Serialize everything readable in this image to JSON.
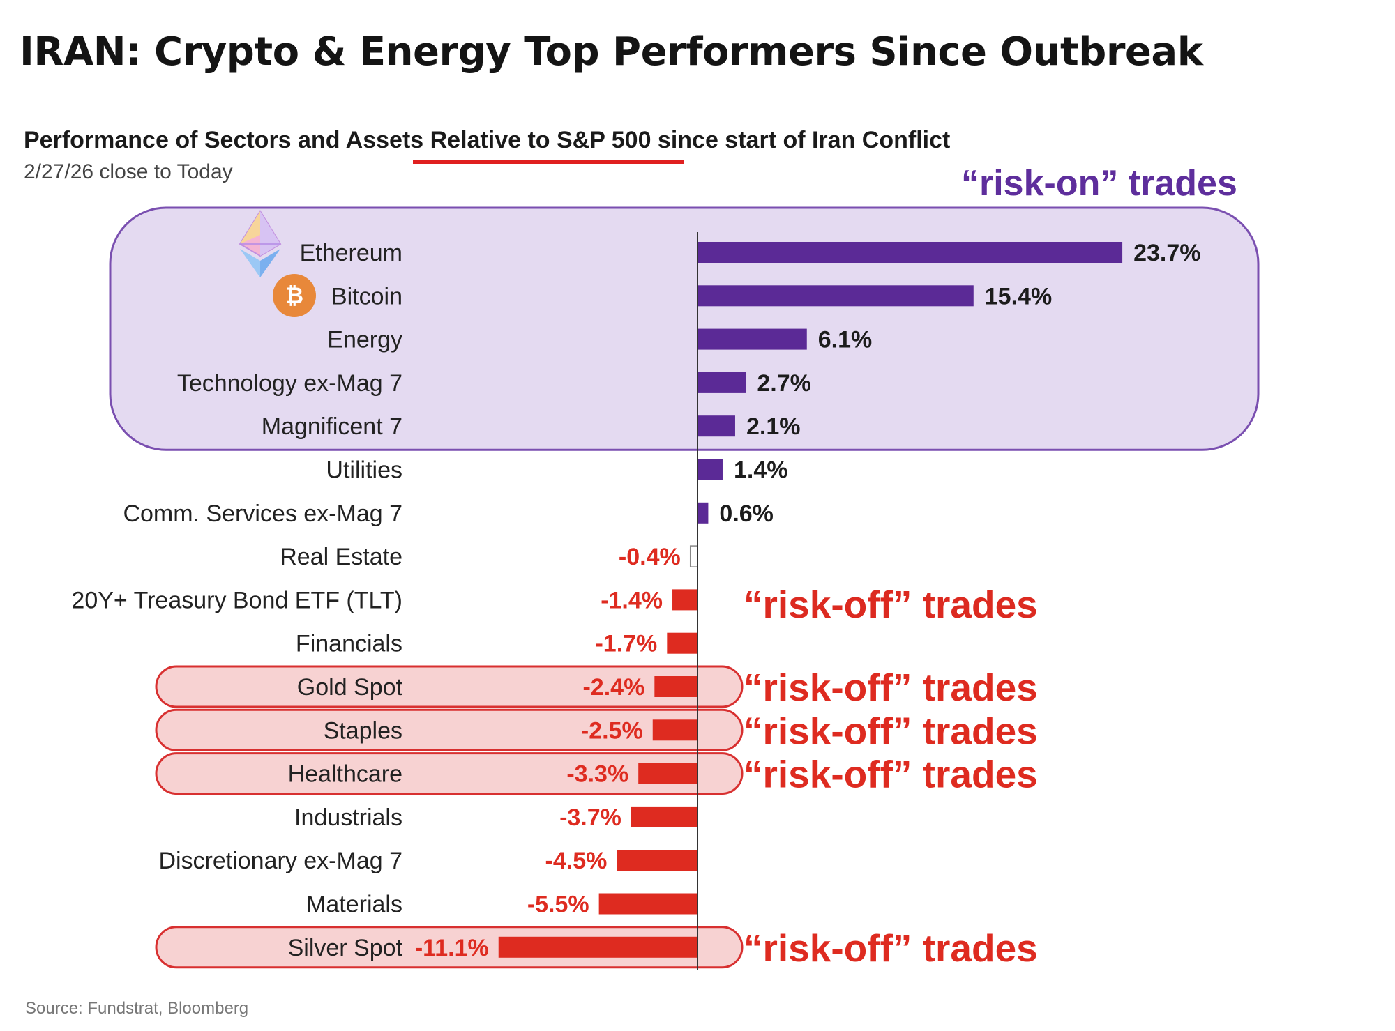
{
  "header": {
    "title": "IRAN: Crypto & Energy Top Performers Since Outbreak",
    "subtitle": "Performance of Sectors and Assets Relative to S&P 500 since start of Iran Conflict",
    "date_range": "2/27/26 close to Today"
  },
  "footer": {
    "source": "Source: Fundstrat, Bloomberg"
  },
  "annotations": {
    "risk_on": "“risk-on” trades",
    "risk_off": "“risk-off” trades",
    "bitcoin_symbol": "₿"
  },
  "colors": {
    "positive": "#5b2a96",
    "negative": "#de2b20",
    "risk_on_fill": "#e4daf1",
    "risk_on_stroke": "#7a4fb0",
    "risk_off_fill": "#f7d2d2",
    "risk_off_stroke": "#d83030",
    "text": "#222222"
  },
  "chart_data": {
    "type": "bar",
    "orientation": "horizontal",
    "unit": "%",
    "categories": [
      "Ethereum",
      "Bitcoin",
      "Energy",
      "Technology ex-Mag 7",
      "Magnificent 7",
      "Utilities",
      "Comm. Services ex-Mag 7",
      "Real Estate",
      "20Y+ Treasury Bond ETF (TLT)",
      "Financials",
      "Gold Spot",
      "Staples",
      "Healthcare",
      "Industrials",
      "Discretionary ex-Mag 7",
      "Materials",
      "Silver Spot"
    ],
    "values": [
      23.7,
      15.4,
      6.1,
      2.7,
      2.1,
      1.4,
      0.6,
      -0.4,
      -1.4,
      -1.7,
      -2.4,
      -2.5,
      -3.3,
      -3.7,
      -4.5,
      -5.5,
      -11.1
    ],
    "value_labels": [
      "23.7%",
      "15.4%",
      "6.1%",
      "2.7%",
      "2.1%",
      "1.4%",
      "0.6%",
      "-0.4%",
      "-1.4%",
      "-1.7%",
      "-2.4%",
      "-2.5%",
      "-3.3%",
      "-3.7%",
      "-4.5%",
      "-5.5%",
      "-11.1%"
    ],
    "xlim": [
      -11.1,
      23.7
    ],
    "grid": false,
    "risk_on_group": [
      "Ethereum",
      "Bitcoin",
      "Energy",
      "Technology ex-Mag 7",
      "Magnificent 7"
    ],
    "risk_off_highlighted": [
      "Gold Spot",
      "Staples",
      "Healthcare",
      "Silver Spot"
    ],
    "risk_off_unboxed": [
      "20Y+ Treasury Bond ETF (TLT)"
    ]
  }
}
